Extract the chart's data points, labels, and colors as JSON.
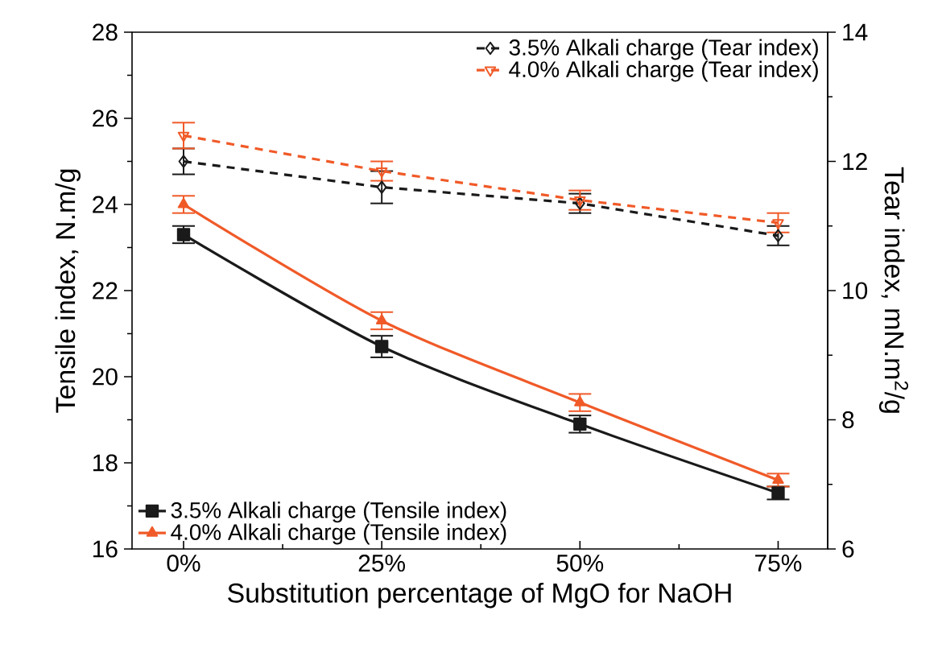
{
  "chart_data": {
    "type": "line",
    "xlabel": "Substitution percentage of MgO for NaOH",
    "ylabel": "Tensile index, N.m/g",
    "y2label": "Tear index, mN.m$^{2}$/g",
    "categories": [
      "0%",
      "25%",
      "50%",
      "75%"
    ],
    "series": [
      {
        "name": "3.5% Alkali charge (Tensile index)",
        "color": "#1a1a1a",
        "values": [
          23.3,
          20.7,
          18.9,
          17.3
        ],
        "errors": [
          0.2,
          0.25,
          0.2,
          0.15
        ],
        "marker": "square",
        "line_style": "solid",
        "axis": "y"
      },
      {
        "name": "4.0% Alkali charge (Tensile index)",
        "color": "#f05a28",
        "values": [
          24.0,
          21.3,
          19.4,
          17.6
        ],
        "errors": [
          0.2,
          0.2,
          0.2,
          0.15
        ],
        "marker": "triangle",
        "line_style": "solid",
        "axis": "y"
      },
      {
        "name": "3.5% Alkali charge (Tear index)",
        "color": "#1a1a1a",
        "values": [
          12.0,
          11.6,
          11.35,
          10.85
        ],
        "errors": [
          0.2,
          0.25,
          0.15,
          0.15
        ],
        "marker": "diamond",
        "line_style": "dashed",
        "axis": "y2"
      },
      {
        "name": "4.0% Alkali charge (Tear index)",
        "color": "#f05a28",
        "values": [
          12.4,
          11.85,
          11.4,
          11.05
        ],
        "errors": [
          0.2,
          0.15,
          0.15,
          0.15
        ],
        "marker": "triangle-down",
        "line_style": "dashed",
        "axis": "y2"
      }
    ],
    "ylim": [
      16,
      28
    ],
    "yticks": [
      16,
      18,
      20,
      22,
      24,
      26,
      28
    ],
    "y2lim": [
      6,
      14
    ],
    "y2ticks": [
      6,
      8,
      10,
      12,
      14
    ],
    "legend": [
      "bottom left",
      "top right"
    ],
    "grid": false
  }
}
